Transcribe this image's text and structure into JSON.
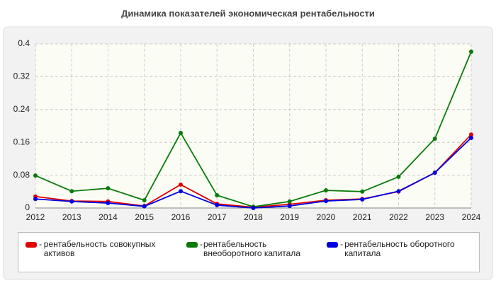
{
  "chart_data": {
    "type": "line",
    "title": "Динамика показателей экономическая рентабельности",
    "categories": [
      "2012",
      "2013",
      "2014",
      "2015",
      "2016",
      "2017",
      "2018",
      "2019",
      "2020",
      "2021",
      "2022",
      "2023",
      "2024"
    ],
    "series": [
      {
        "name": "рентабельность совокупных активов",
        "color": "#e00000",
        "values": [
          0.028,
          0.017,
          0.016,
          0.005,
          0.057,
          0.01,
          0.002,
          0.009,
          0.019,
          0.022,
          0.04,
          0.086,
          0.179
        ]
      },
      {
        "name": "рентабельность внеоборотного капитала",
        "color": "#0a7a0a",
        "values": [
          0.079,
          0.041,
          0.048,
          0.019,
          0.183,
          0.031,
          0.003,
          0.016,
          0.043,
          0.04,
          0.076,
          0.169,
          0.381
        ]
      },
      {
        "name": "рентабельность оборотного капитала",
        "color": "#0000e0",
        "values": [
          0.022,
          0.016,
          0.012,
          0.004,
          0.041,
          0.007,
          0,
          0.005,
          0.017,
          0.021,
          0.041,
          0.086,
          0.171
        ]
      }
    ],
    "ylim": [
      0,
      0.4
    ],
    "yticks": [
      0,
      0.08,
      0.16,
      0.24,
      0.32,
      0.4
    ],
    "grid": true
  }
}
